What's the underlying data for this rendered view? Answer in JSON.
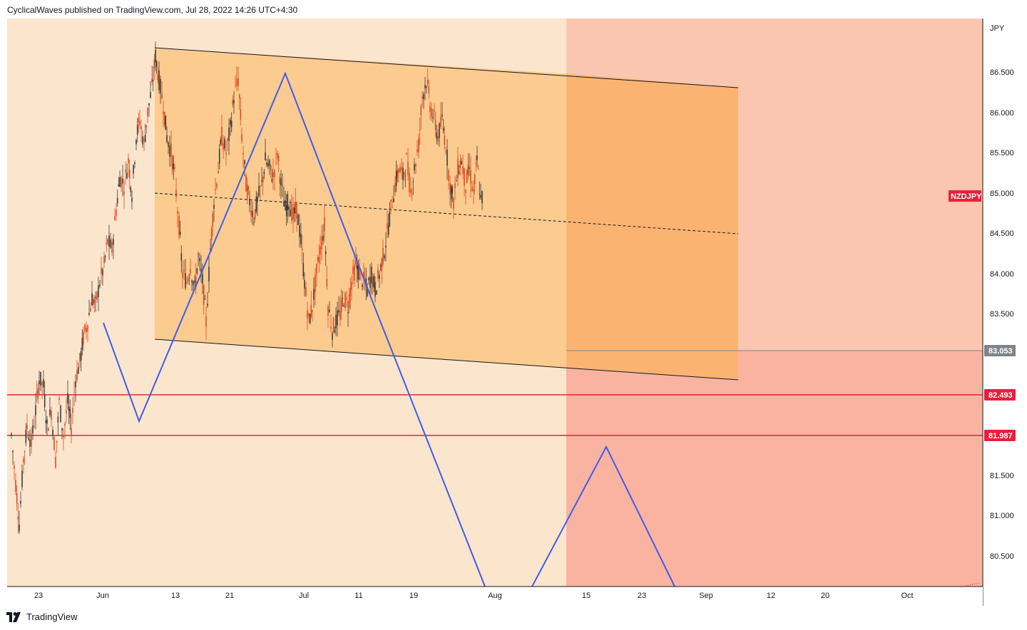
{
  "header": {
    "publish_line": "CyclicalWaves published on TradingView.com, Jul 28, 2022 14:26 UTC+4:30"
  },
  "footer": {
    "brand": "TradingView",
    "logo_icon": "tradingview-logo-icon"
  },
  "colors": {
    "background_light": "#fce5cd",
    "channel_fill": "#fbcb8f",
    "projection_fill": "#fac6af",
    "projection_lower_fill": "#fbb3a1",
    "channel_projection_fill": "#fbb372",
    "wave_line": "#3e5de8",
    "candle_up": "#3b3b3b",
    "candle_down": "#e04b1f",
    "horizontal_level": "#e8203a",
    "price_tag_gray": "#808489",
    "price_tag_red": "#e8203a"
  },
  "chart_data": {
    "type": "candlestick",
    "symbol_label": "NZDJPY",
    "currency_label": "JPY",
    "y_axis_ticks": [
      "86.500",
      "86.000",
      "85.500",
      "85.000",
      "84.500",
      "84.000",
      "83.500",
      "81.500",
      "81.000",
      "80.500"
    ],
    "x_axis_ticks": [
      "23",
      "Jun",
      "13",
      "21",
      "Jul",
      "11",
      "19",
      "Aug",
      "15",
      "23",
      "Sep",
      "12",
      "20",
      "Oct"
    ],
    "ylim": [
      80.1,
      87.1
    ],
    "price_tags": [
      {
        "label": "NZDJPY",
        "value": 85.0,
        "color": "red"
      },
      {
        "label": "83.053",
        "value": 83.053,
        "color": "gray"
      },
      {
        "label": "82.493",
        "value": 82.493,
        "color": "red"
      },
      {
        "label": "81.987",
        "value": 81.987,
        "color": "red"
      }
    ],
    "horizontal_levels": [
      82.493,
      81.987
    ],
    "candles_close_path": [
      [
        16,
        82.0
      ],
      [
        22,
        81.4
      ],
      [
        27,
        80.9
      ],
      [
        33,
        81.7
      ],
      [
        38,
        82.1
      ],
      [
        44,
        81.9
      ],
      [
        50,
        82.3
      ],
      [
        55,
        82.7
      ],
      [
        61,
        82.6
      ],
      [
        66,
        82.1
      ],
      [
        72,
        82.3
      ],
      [
        78,
        81.7
      ],
      [
        83,
        82.4
      ],
      [
        89,
        82.0
      ],
      [
        95,
        82.4
      ],
      [
        100,
        82.1
      ],
      [
        106,
        82.7
      ],
      [
        112,
        82.9
      ],
      [
        117,
        83.2
      ],
      [
        123,
        83.4
      ],
      [
        129,
        83.7
      ],
      [
        134,
        83.6
      ],
      [
        140,
        83.9
      ],
      [
        146,
        84.1
      ],
      [
        151,
        84.4
      ],
      [
        157,
        84.3
      ],
      [
        163,
        84.8
      ],
      [
        168,
        85.2
      ],
      [
        174,
        85.1
      ],
      [
        180,
        85.4
      ],
      [
        185,
        85.0
      ],
      [
        191,
        85.7
      ],
      [
        196,
        85.9
      ],
      [
        202,
        85.6
      ],
      [
        207,
        86.0
      ],
      [
        213,
        86.3
      ],
      [
        218,
        86.7
      ],
      [
        223,
        86.4
      ],
      [
        229,
        86.1
      ],
      [
        234,
        85.7
      ],
      [
        240,
        85.5
      ],
      [
        245,
        85.2
      ],
      [
        251,
        84.6
      ],
      [
        256,
        84.0
      ],
      [
        262,
        83.9
      ],
      [
        267,
        84.1
      ],
      [
        273,
        83.8
      ],
      [
        278,
        84.2
      ],
      [
        284,
        83.9
      ],
      [
        289,
        83.4
      ],
      [
        295,
        84.3
      ],
      [
        300,
        84.9
      ],
      [
        306,
        85.3
      ],
      [
        311,
        85.7
      ],
      [
        317,
        85.5
      ],
      [
        323,
        85.8
      ],
      [
        328,
        86.2
      ],
      [
        334,
        86.4
      ],
      [
        339,
        85.7
      ],
      [
        345,
        85.1
      ],
      [
        350,
        84.9
      ],
      [
        356,
        84.7
      ],
      [
        361,
        84.9
      ],
      [
        367,
        85.1
      ],
      [
        372,
        85.4
      ],
      [
        378,
        85.3
      ],
      [
        383,
        85.2
      ],
      [
        389,
        85.5
      ],
      [
        394,
        85.1
      ],
      [
        400,
        84.8
      ],
      [
        405,
        84.9
      ],
      [
        411,
        84.7
      ],
      [
        416,
        84.8
      ],
      [
        422,
        84.4
      ],
      [
        427,
        83.9
      ],
      [
        433,
        83.4
      ],
      [
        438,
        83.6
      ],
      [
        444,
        84.0
      ],
      [
        449,
        84.3
      ],
      [
        455,
        84.6
      ],
      [
        460,
        83.6
      ],
      [
        466,
        83.3
      ],
      [
        471,
        83.4
      ],
      [
        477,
        83.5
      ],
      [
        482,
        83.7
      ],
      [
        488,
        83.6
      ],
      [
        493,
        83.9
      ],
      [
        499,
        84.1
      ],
      [
        504,
        84.0
      ],
      [
        510,
        83.9
      ],
      [
        515,
        83.8
      ],
      [
        521,
        84.0
      ],
      [
        526,
        83.8
      ],
      [
        532,
        84.0
      ],
      [
        537,
        84.2
      ],
      [
        543,
        84.5
      ],
      [
        548,
        84.8
      ],
      [
        554,
        85.1
      ],
      [
        559,
        85.3
      ],
      [
        565,
        85.2
      ],
      [
        570,
        85.4
      ],
      [
        576,
        85.0
      ],
      [
        581,
        85.3
      ],
      [
        587,
        85.6
      ],
      [
        592,
        86.2
      ],
      [
        598,
        86.4
      ],
      [
        603,
        86.1
      ],
      [
        609,
        85.9
      ],
      [
        614,
        85.7
      ],
      [
        620,
        85.9
      ],
      [
        625,
        85.6
      ],
      [
        631,
        85.1
      ],
      [
        636,
        84.9
      ],
      [
        642,
        85.3
      ],
      [
        647,
        85.4
      ],
      [
        653,
        85.1
      ],
      [
        658,
        85.3
      ],
      [
        664,
        85.0
      ],
      [
        669,
        85.4
      ],
      [
        674,
        84.9
      ],
      [
        678,
        85.0
      ]
    ],
    "channel": {
      "upper": [
        [
          217,
          86.85
        ],
        [
          1035,
          86.33
        ]
      ],
      "lower": [
        [
          217,
          83.2
        ],
        [
          1035,
          82.17
        ]
      ],
      "median": [
        [
          217,
          85.03
        ],
        [
          1035,
          84.5
        ]
      ]
    },
    "wave_path": [
      [
        145,
        83.4
      ],
      [
        195,
        82.2
      ],
      [
        400,
        86.5
      ],
      [
        525,
        83.6
      ],
      [
        680,
        80.1
      ]
    ],
    "wave_projection": [
      [
        746,
        80.1
      ],
      [
        850,
        81.85
      ],
      [
        946,
        80.1
      ]
    ],
    "projection_zone_start_x_label": "",
    "source_note": ""
  }
}
